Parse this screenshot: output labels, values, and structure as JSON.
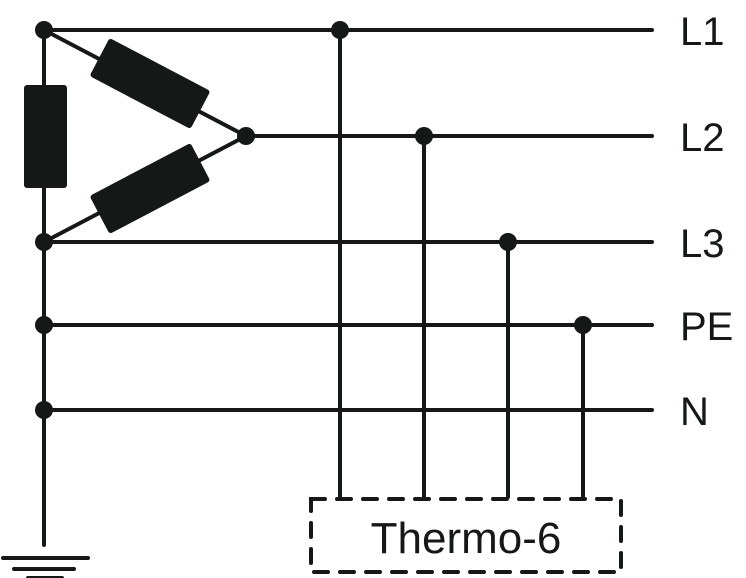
{
  "lines": [
    {
      "label": "L1"
    },
    {
      "label": "L2"
    },
    {
      "label": "L3"
    },
    {
      "label": "PE"
    },
    {
      "label": "N"
    }
  ],
  "device": {
    "label": "Thermo-6"
  },
  "colors": {
    "ink": "#161817",
    "background": "#ffffff"
  }
}
